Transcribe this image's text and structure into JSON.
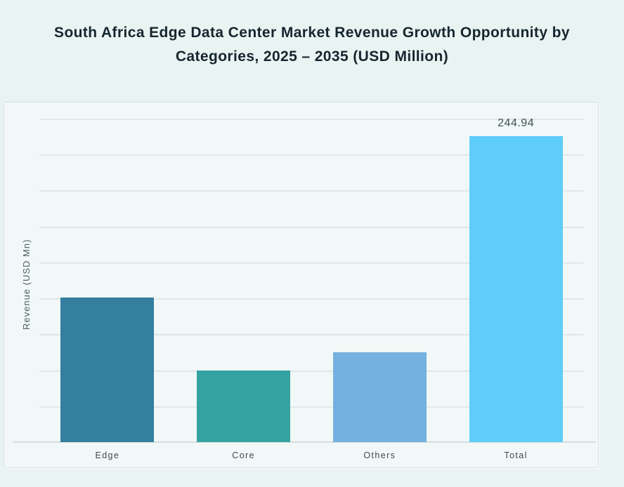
{
  "title": {
    "line1": "South Africa Edge Data Center Market Revenue Growth Opportunity by",
    "line2": "Categories, 2025 – 2035 (USD Million)"
  },
  "chart_data": {
    "type": "bar",
    "title": "South Africa Edge Data Center Market Revenue Growth Opportunity by Categories, 2025 – 2035 (USD Million)",
    "xlabel": "",
    "ylabel": "Revenue (USD Mn)",
    "categories": [
      "Edge",
      "Core",
      "Others",
      "Total"
    ],
    "series": [
      {
        "category": "Edge",
        "value": 115.5,
        "color": "#347f9e",
        "data_label": null
      },
      {
        "category": "Core",
        "value": 57.5,
        "color": "#35a2a2",
        "data_label": null
      },
      {
        "category": "Others",
        "value": 71.9,
        "color": "#74b1e0",
        "data_label": null
      },
      {
        "category": "Total",
        "value": 244.94,
        "color": "#5fcdfa",
        "data_label": "244.94"
      }
    ],
    "ylim": [
      0,
      259
    ],
    "yticks_labeled": false,
    "gridline_count": 9,
    "grid": "horizontal",
    "legend": "none"
  },
  "colors": {
    "page_background": "#e9f3f2",
    "panel_background": "#f1f8f7",
    "panel_border": "#d8e1e1",
    "gridline": "#dfe8e8",
    "axis_line": "#d4dede",
    "title_text": "#16262e",
    "value_label_text": "#3e4e56",
    "category_label_text": "#3b4a52",
    "y_axis_label_text": "#4e5e64"
  }
}
